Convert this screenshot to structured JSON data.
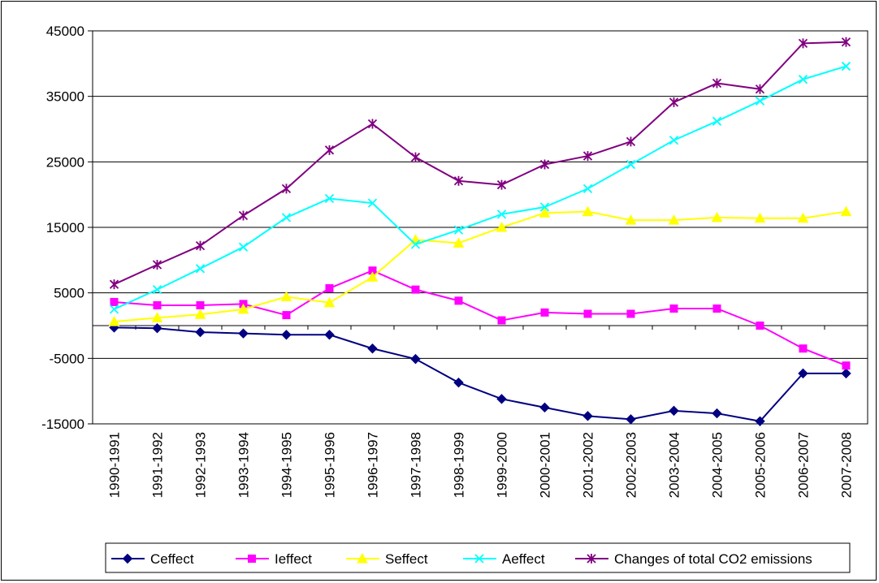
{
  "chart_data": {
    "type": "line",
    "title": "",
    "xlabel": "",
    "ylabel": "",
    "ylim": [
      -15000,
      45000
    ],
    "yticks": [
      45000,
      35000,
      25000,
      15000,
      5000,
      -5000,
      -15000
    ],
    "grid": "horizontal",
    "legend_position": "bottom",
    "categories": [
      "1990-1991",
      "1991-1992",
      "1992-1993",
      "1993-1994",
      "1994-1995",
      "1995-1996",
      "1996-1997",
      "1997-1998",
      "1998-1999",
      "1999-2000",
      "2000-2001",
      "2001-2002",
      "2002-2003",
      "2003-2004",
      "2004-2005",
      "2005-2006",
      "2006-2007",
      "2007-2008"
    ],
    "series": [
      {
        "name": "Ceffect",
        "color": "#000080",
        "marker": "diamond",
        "values": [
          -300,
          -400,
          -1000,
          -1200,
          -1400,
          -1400,
          -3500,
          -5100,
          -8700,
          -11200,
          -12500,
          -13800,
          -14300,
          -13000,
          -13400,
          -14600,
          -7300,
          -7300
        ]
      },
      {
        "name": "Ieffect",
        "color": "#FF00FF",
        "marker": "square",
        "values": [
          3600,
          3100,
          3100,
          3300,
          1600,
          5700,
          8400,
          5500,
          3800,
          800,
          2000,
          1800,
          1800,
          2600,
          2600,
          0,
          -3500,
          -6100
        ]
      },
      {
        "name": "Seffect",
        "color": "#FFFF00",
        "marker": "triangle",
        "values": [
          600,
          1200,
          1700,
          2500,
          4400,
          3500,
          7400,
          13100,
          12600,
          15000,
          17200,
          17400,
          16100,
          16100,
          16500,
          16400,
          16400,
          17400
        ]
      },
      {
        "name": "Aeffect",
        "color": "#00FFFF",
        "marker": "x",
        "values": [
          2500,
          5500,
          8700,
          12000,
          16500,
          19400,
          18700,
          12400,
          14600,
          17000,
          18100,
          20900,
          24600,
          28300,
          31200,
          34300,
          37600,
          39600
        ]
      },
      {
        "name": "Changes of total CO2 emissions",
        "color": "#800080",
        "marker": "star",
        "values": [
          6300,
          9300,
          12200,
          16800,
          20900,
          26800,
          30800,
          25700,
          22100,
          21500,
          24600,
          25900,
          28100,
          34100,
          37000,
          36100,
          43100,
          43300
        ]
      }
    ]
  }
}
